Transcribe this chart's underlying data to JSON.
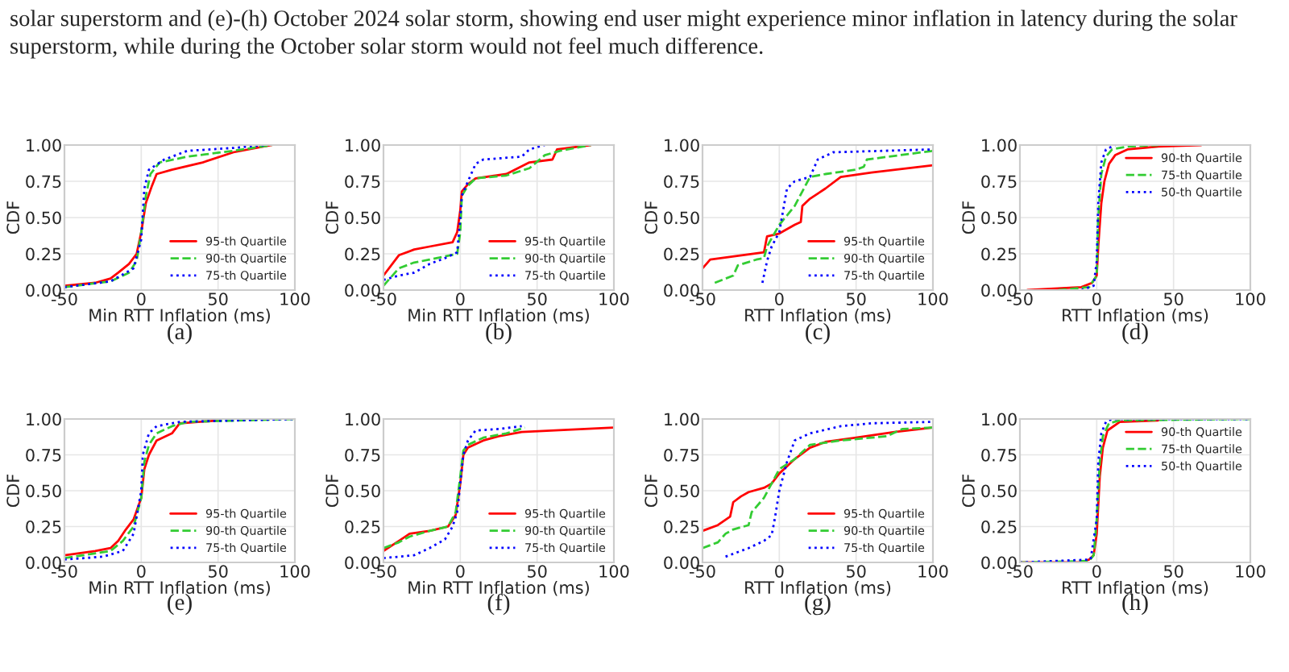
{
  "chart_data": [
    {
      "type": "line",
      "xlabel": "Min RTT Inflation (ms)",
      "ylabel": "CDF",
      "xlim": [
        -50,
        100
      ],
      "xticks": [
        -50,
        0,
        50,
        100
      ],
      "ylim": [
        0,
        1
      ],
      "yticks": [
        {
          "value": 0,
          "label": "0.00"
        },
        {
          "value": 0.25,
          "label": "0.25"
        },
        {
          "value": 0.5,
          "label": "0.50"
        },
        {
          "value": 0.75,
          "label": "0.75"
        },
        {
          "value": 1,
          "label": "1.00"
        }
      ],
      "grid": true,
      "legend": "bottom right",
      "annotations": [
        "(a)",
        "solar superstorm and (e)-(h) October 2024 solar storm, showing end user might experience minor inflation in latency during the solar superstorm, while during the October solar storm would not feel much difference."
      ],
      "series": [
        {
          "name": "95-th Quartile",
          "color": "#ff0000",
          "line_style": "solid",
          "x": [
            -50,
            -30,
            -20,
            -15,
            -8,
            -3,
            0,
            3,
            7,
            10,
            20,
            40,
            60,
            85
          ],
          "values": [
            0.03,
            0.05,
            0.08,
            0.12,
            0.18,
            0.25,
            0.4,
            0.6,
            0.72,
            0.8,
            0.83,
            0.88,
            0.95,
            1.0
          ]
        },
        {
          "name": "90-th Quartile",
          "color": "#33cc33",
          "line_style": "dashed",
          "x": [
            -50,
            -20,
            -8,
            -3,
            0,
            3,
            6,
            12,
            30,
            60,
            85
          ],
          "values": [
            0.02,
            0.06,
            0.12,
            0.2,
            0.4,
            0.65,
            0.8,
            0.88,
            0.92,
            0.96,
            1.0
          ]
        },
        {
          "name": "75-th Quartile",
          "color": "#0000ff",
          "line_style": "dotted",
          "x": [
            -50,
            -20,
            -5,
            0,
            2,
            5,
            15,
            30,
            60,
            80
          ],
          "values": [
            0.02,
            0.06,
            0.15,
            0.35,
            0.7,
            0.83,
            0.9,
            0.96,
            0.98,
            1.0
          ]
        }
      ]
    },
    {
      "type": "line",
      "xlabel": "Min RTT Inflation (ms)",
      "ylabel": "CDF",
      "xlim": [
        -50,
        100
      ],
      "xticks": [
        -50,
        0,
        50,
        100
      ],
      "ylim": [
        0,
        1
      ],
      "yticks": [
        {
          "value": 0,
          "label": "0.00"
        },
        {
          "value": 0.25,
          "label": "0.25"
        },
        {
          "value": 0.5,
          "label": "0.50"
        },
        {
          "value": 0.75,
          "label": "0.75"
        },
        {
          "value": 1,
          "label": "1.00"
        }
      ],
      "grid": true,
      "legend": "bottom right",
      "annotations": [
        "(b)"
      ],
      "series": [
        {
          "name": "95-th Quartile",
          "color": "#ff0000",
          "line_style": "solid",
          "x": [
            -50,
            -40,
            -30,
            -20,
            -5,
            -2,
            0,
            1,
            5,
            10,
            30,
            45,
            60,
            63,
            85
          ],
          "values": [
            0.1,
            0.24,
            0.28,
            0.3,
            0.33,
            0.4,
            0.55,
            0.68,
            0.73,
            0.77,
            0.8,
            0.88,
            0.9,
            0.97,
            1.0
          ]
        },
        {
          "name": "90-th Quartile",
          "color": "#33cc33",
          "line_style": "dashed",
          "x": [
            -50,
            -40,
            -30,
            -20,
            -2,
            0,
            1,
            5,
            10,
            30,
            45,
            55,
            65,
            85
          ],
          "values": [
            0.03,
            0.15,
            0.19,
            0.21,
            0.25,
            0.4,
            0.65,
            0.72,
            0.77,
            0.79,
            0.84,
            0.93,
            0.96,
            1.0
          ]
        },
        {
          "name": "75-th Quartile",
          "color": "#0000ff",
          "line_style": "dotted",
          "x": [
            -50,
            -40,
            -30,
            -20,
            -10,
            -2,
            0,
            1,
            5,
            10,
            15,
            40,
            45,
            55
          ],
          "values": [
            0.07,
            0.1,
            0.12,
            0.18,
            0.22,
            0.26,
            0.5,
            0.65,
            0.75,
            0.87,
            0.9,
            0.92,
            0.97,
            1.0
          ]
        }
      ]
    },
    {
      "type": "line",
      "xlabel": "RTT Inflation (ms)",
      "ylabel": "CDF",
      "xlim": [
        -50,
        100
      ],
      "xticks": [
        -50,
        0,
        50,
        100
      ],
      "ylim": [
        0,
        1
      ],
      "yticks": [
        {
          "value": 0,
          "label": "0.00"
        },
        {
          "value": 0.25,
          "label": "0.25"
        },
        {
          "value": 0.5,
          "label": "0.50"
        },
        {
          "value": 0.75,
          "label": "0.75"
        },
        {
          "value": 1,
          "label": "1.00"
        }
      ],
      "grid": true,
      "legend": "bottom right",
      "annotations": [
        "(c)"
      ],
      "series": [
        {
          "name": "95-th Quartile",
          "color": "#ff0000",
          "line_style": "solid",
          "x": [
            -50,
            -45,
            -10,
            -8,
            0,
            10,
            14,
            15,
            20,
            30,
            40,
            60,
            100
          ],
          "values": [
            0.15,
            0.21,
            0.26,
            0.37,
            0.39,
            0.45,
            0.47,
            0.58,
            0.63,
            0.7,
            0.78,
            0.81,
            0.86
          ]
        },
        {
          "name": "90-th Quartile",
          "color": "#33cc33",
          "line_style": "dashed",
          "x": [
            -42,
            -30,
            -27,
            -15,
            -10,
            -8,
            0,
            10,
            15,
            20,
            30,
            50,
            55,
            57,
            100
          ],
          "values": [
            0.05,
            0.1,
            0.17,
            0.21,
            0.22,
            0.3,
            0.45,
            0.58,
            0.68,
            0.78,
            0.8,
            0.83,
            0.85,
            0.9,
            0.96
          ]
        },
        {
          "name": "75-th Quartile",
          "color": "#0000ff",
          "line_style": "dotted",
          "x": [
            -11,
            -8,
            -5,
            0,
            5,
            10,
            20,
            25,
            35,
            100
          ],
          "values": [
            0.05,
            0.2,
            0.3,
            0.4,
            0.7,
            0.75,
            0.78,
            0.9,
            0.95,
            0.97
          ]
        }
      ]
    },
    {
      "type": "line",
      "xlabel": "RTT Inflation (ms)",
      "ylabel": "CDF",
      "xlim": [
        -50,
        100
      ],
      "xticks": [
        -50,
        0,
        50,
        100
      ],
      "ylim": [
        0,
        1
      ],
      "yticks": [
        {
          "value": 0,
          "label": "0.00"
        },
        {
          "value": 0.25,
          "label": "0.25"
        },
        {
          "value": 0.5,
          "label": "0.50"
        },
        {
          "value": 0.75,
          "label": "0.75"
        },
        {
          "value": 1,
          "label": "1.00"
        }
      ],
      "grid": true,
      "legend": "top right",
      "annotations": [
        "(d)"
      ],
      "series": [
        {
          "name": "90-th Quartile",
          "color": "#ff0000",
          "line_style": "solid",
          "x": [
            -45,
            -10,
            -3,
            0,
            1,
            3,
            5,
            8,
            12,
            20,
            40,
            68
          ],
          "values": [
            0.0,
            0.02,
            0.05,
            0.1,
            0.3,
            0.6,
            0.75,
            0.87,
            0.93,
            0.97,
            0.99,
            1.0
          ]
        },
        {
          "name": "75-th Quartile",
          "color": "#33cc33",
          "line_style": "dashed",
          "x": [
            -25,
            -5,
            0,
            1,
            3,
            6,
            10,
            20,
            40
          ],
          "values": [
            0.0,
            0.02,
            0.1,
            0.5,
            0.8,
            0.92,
            0.97,
            0.99,
            1.0
          ]
        },
        {
          "name": "50-th Quartile",
          "color": "#0000ff",
          "line_style": "dotted",
          "x": [
            -10,
            -2,
            0,
            1,
            3,
            6,
            12
          ],
          "values": [
            0.0,
            0.03,
            0.2,
            0.6,
            0.88,
            0.97,
            1.0
          ]
        }
      ]
    },
    {
      "type": "line",
      "xlabel": "Min RTT Inflation (ms)",
      "ylabel": "CDF",
      "xlim": [
        -50,
        100
      ],
      "xticks": [
        -50,
        0,
        50,
        100
      ],
      "ylim": [
        0,
        1
      ],
      "yticks": [
        {
          "value": 0,
          "label": "0.00"
        },
        {
          "value": 0.25,
          "label": "0.25"
        },
        {
          "value": 0.5,
          "label": "0.50"
        },
        {
          "value": 0.75,
          "label": "0.75"
        },
        {
          "value": 1,
          "label": "1.00"
        }
      ],
      "grid": true,
      "legend": "bottom right",
      "annotations": [
        "(e)"
      ],
      "series": [
        {
          "name": "95-th Quartile",
          "color": "#ff0000",
          "line_style": "solid",
          "x": [
            -50,
            -30,
            -20,
            -15,
            -10,
            -5,
            0,
            2,
            5,
            10,
            20,
            25,
            50
          ],
          "values": [
            0.05,
            0.08,
            0.1,
            0.15,
            0.23,
            0.3,
            0.45,
            0.65,
            0.75,
            0.85,
            0.9,
            0.97,
            0.99
          ]
        },
        {
          "name": "90-th Quartile",
          "color": "#33cc33",
          "line_style": "dashed",
          "x": [
            -50,
            -20,
            -12,
            -5,
            0,
            2,
            5,
            10,
            20,
            30,
            100
          ],
          "values": [
            0.03,
            0.08,
            0.15,
            0.25,
            0.45,
            0.7,
            0.82,
            0.9,
            0.95,
            0.98,
            1.0
          ]
        },
        {
          "name": "75-th Quartile",
          "color": "#0000ff",
          "line_style": "dotted",
          "x": [
            -50,
            -25,
            -12,
            -5,
            0,
            1,
            5,
            10,
            25,
            100
          ],
          "values": [
            0.02,
            0.04,
            0.08,
            0.2,
            0.5,
            0.75,
            0.9,
            0.95,
            0.98,
            1.0
          ]
        }
      ]
    },
    {
      "type": "line",
      "xlabel": "Min RTT Inflation (ms)",
      "ylabel": "CDF",
      "xlim": [
        -50,
        100
      ],
      "xticks": [
        -50,
        0,
        50,
        100
      ],
      "ylim": [
        0,
        1
      ],
      "yticks": [
        {
          "value": 0,
          "label": "0.00"
        },
        {
          "value": 0.25,
          "label": "0.25"
        },
        {
          "value": 0.5,
          "label": "0.50"
        },
        {
          "value": 0.75,
          "label": "0.75"
        },
        {
          "value": 1,
          "label": "1.00"
        }
      ],
      "grid": true,
      "legend": "bottom right",
      "annotations": [
        "(f)"
      ],
      "series": [
        {
          "name": "95-th Quartile",
          "color": "#ff0000",
          "line_style": "solid",
          "x": [
            -50,
            -40,
            -33,
            -20,
            -8,
            -3,
            0,
            2,
            5,
            15,
            25,
            40,
            100
          ],
          "values": [
            0.08,
            0.15,
            0.2,
            0.22,
            0.25,
            0.33,
            0.55,
            0.75,
            0.8,
            0.85,
            0.88,
            0.91,
            0.94
          ]
        },
        {
          "name": "90-th Quartile",
          "color": "#33cc33",
          "line_style": "dashed",
          "x": [
            -50,
            -40,
            -33,
            -20,
            -8,
            -3,
            0,
            2,
            5,
            15,
            30,
            42
          ],
          "values": [
            0.1,
            0.14,
            0.18,
            0.22,
            0.25,
            0.35,
            0.6,
            0.78,
            0.82,
            0.87,
            0.9,
            0.94
          ]
        },
        {
          "name": "75-th Quartile",
          "color": "#0000ff",
          "line_style": "dotted",
          "x": [
            -50,
            -30,
            -20,
            -10,
            -5,
            -2,
            0,
            2,
            5,
            10,
            25,
            40
          ],
          "values": [
            0.03,
            0.05,
            0.1,
            0.16,
            0.25,
            0.35,
            0.55,
            0.75,
            0.85,
            0.92,
            0.93,
            0.95
          ]
        }
      ]
    },
    {
      "type": "line",
      "xlabel": "RTT Inflation (ms)",
      "ylabel": "CDF",
      "xlim": [
        -50,
        100
      ],
      "xticks": [
        -50,
        0,
        50,
        100
      ],
      "ylim": [
        0,
        1
      ],
      "yticks": [
        {
          "value": 0,
          "label": "0.00"
        },
        {
          "value": 0.25,
          "label": "0.25"
        },
        {
          "value": 0.5,
          "label": "0.50"
        },
        {
          "value": 0.75,
          "label": "0.75"
        },
        {
          "value": 1,
          "label": "1.00"
        }
      ],
      "grid": true,
      "legend": "bottom right",
      "annotations": [
        "(g)"
      ],
      "series": [
        {
          "name": "95-th Quartile",
          "color": "#ff0000",
          "line_style": "solid",
          "x": [
            -50,
            -40,
            -32,
            -30,
            -25,
            -20,
            -10,
            -5,
            0,
            10,
            20,
            30,
            50,
            75,
            100
          ],
          "values": [
            0.22,
            0.26,
            0.32,
            0.42,
            0.46,
            0.49,
            0.52,
            0.55,
            0.62,
            0.72,
            0.8,
            0.84,
            0.87,
            0.91,
            0.94
          ]
        },
        {
          "name": "90-th Quartile",
          "color": "#33cc33",
          "line_style": "dashed",
          "x": [
            -50,
            -40,
            -35,
            -30,
            -20,
            -18,
            -10,
            -5,
            0,
            10,
            20,
            40,
            70,
            80,
            100
          ],
          "values": [
            0.1,
            0.14,
            0.2,
            0.23,
            0.26,
            0.35,
            0.45,
            0.55,
            0.65,
            0.72,
            0.82,
            0.85,
            0.88,
            0.93,
            0.94
          ]
        },
        {
          "name": "75-th Quartile",
          "color": "#0000ff",
          "line_style": "dotted",
          "x": [
            -35,
            -20,
            -10,
            -5,
            -3,
            0,
            5,
            10,
            20,
            40,
            60,
            100
          ],
          "values": [
            0.04,
            0.1,
            0.15,
            0.19,
            0.3,
            0.5,
            0.7,
            0.85,
            0.9,
            0.95,
            0.97,
            0.98
          ]
        }
      ]
    },
    {
      "type": "line",
      "xlabel": "RTT Inflation (ms)",
      "ylabel": "CDF",
      "xlim": [
        -50,
        100
      ],
      "xticks": [
        -50,
        0,
        50,
        100
      ],
      "ylim": [
        0,
        1
      ],
      "yticks": [
        {
          "value": 0,
          "label": "0.00"
        },
        {
          "value": 0.25,
          "label": "0.25"
        },
        {
          "value": 0.5,
          "label": "0.50"
        },
        {
          "value": 0.75,
          "label": "0.75"
        },
        {
          "value": 1,
          "label": "1.00"
        }
      ],
      "grid": true,
      "legend": "top right",
      "annotations": [
        "(h)"
      ],
      "series": [
        {
          "name": "90-th Quartile",
          "color": "#ff0000",
          "line_style": "solid",
          "x": [
            -50,
            -10,
            -5,
            -2,
            0,
            2,
            4,
            7,
            15,
            40
          ],
          "values": [
            0.0,
            0.0,
            0.02,
            0.05,
            0.2,
            0.6,
            0.8,
            0.92,
            0.98,
            0.99
          ]
        },
        {
          "name": "75-th Quartile",
          "color": "#33cc33",
          "line_style": "dashed",
          "x": [
            -50,
            -5,
            -2,
            0,
            2,
            4,
            8,
            15,
            100
          ],
          "values": [
            0.0,
            0.01,
            0.05,
            0.3,
            0.7,
            0.88,
            0.97,
            0.99,
            1.0
          ]
        },
        {
          "name": "50-th Quartile",
          "color": "#0000ff",
          "line_style": "dotted",
          "x": [
            -50,
            -4,
            0,
            1,
            3,
            6,
            10,
            100
          ],
          "values": [
            0.0,
            0.02,
            0.3,
            0.7,
            0.9,
            0.98,
            1.0,
            1.0
          ]
        }
      ]
    }
  ]
}
